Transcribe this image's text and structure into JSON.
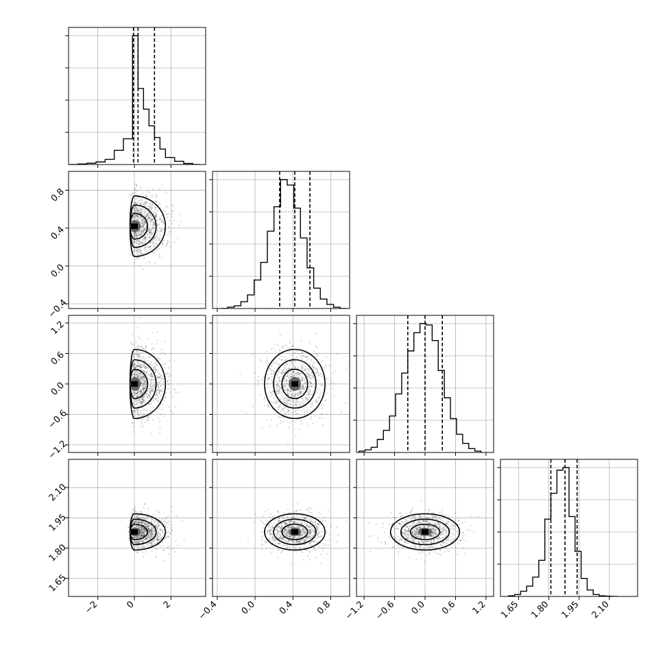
{
  "chart_data": {
    "type": "corner",
    "title": "",
    "grid": true,
    "parameters": [
      {
        "label": "",
        "range": [
          -3.6,
          3.9
        ],
        "ticks": [
          -2,
          0,
          2
        ],
        "tick_labels": [
          "−2",
          "0",
          "2"
        ],
        "quantiles": [
          -0.05,
          0.2,
          1.1
        ],
        "mode": 0.0,
        "hist_bins": [
          -3.6,
          -3.1,
          -2.6,
          -2.1,
          -1.6,
          -1.1,
          -0.6,
          -0.1,
          0.2,
          0.5,
          0.8,
          1.1,
          1.4,
          1.7,
          2.2,
          2.7,
          3.2,
          3.6
        ],
        "hist_values": [
          0,
          0.004,
          0.01,
          0.02,
          0.04,
          0.11,
          0.2,
          1.0,
          0.59,
          0.43,
          0.3,
          0.21,
          0.12,
          0.055,
          0.025,
          0.008,
          0
        ]
      },
      {
        "label": "",
        "range": [
          -0.45,
          1.0
        ],
        "ticks": [
          -0.4,
          0.0,
          0.4,
          0.8
        ],
        "tick_labels": [
          "−0.4",
          "0.0",
          "0.4",
          "0.8"
        ],
        "quantiles": [
          0.26,
          0.42,
          0.58
        ],
        "hist_bins": [
          -0.36,
          -0.29,
          -0.22,
          -0.15,
          -0.08,
          -0.01,
          0.06,
          0.13,
          0.2,
          0.27,
          0.34,
          0.41,
          0.48,
          0.55,
          0.62,
          0.69,
          0.76,
          0.83,
          0.9,
          0.97
        ],
        "hist_values": [
          0,
          0.01,
          0.02,
          0.05,
          0.1,
          0.21,
          0.34,
          0.57,
          0.75,
          0.95,
          0.91,
          0.74,
          0.52,
          0.3,
          0.15,
          0.07,
          0.03,
          0.01,
          0
        ]
      },
      {
        "label": "",
        "range": [
          -1.35,
          1.35
        ],
        "ticks": [
          -1.2,
          -0.6,
          0.0,
          0.6,
          1.2
        ],
        "tick_labels": [
          "−1.2",
          "−0.6",
          "0.0",
          "0.6",
          "1.2"
        ],
        "quantiles": [
          -0.34,
          0.0,
          0.34
        ],
        "hist_bins": [
          -1.3,
          -1.18,
          -1.06,
          -0.94,
          -0.82,
          -0.7,
          -0.58,
          -0.46,
          -0.34,
          -0.22,
          -0.1,
          0.02,
          0.14,
          0.26,
          0.38,
          0.5,
          0.62,
          0.74,
          0.86,
          0.98,
          1.1
        ],
        "hist_values": [
          0.01,
          0.02,
          0.04,
          0.1,
          0.17,
          0.28,
          0.45,
          0.61,
          0.78,
          0.92,
          0.99,
          0.98,
          0.86,
          0.63,
          0.42,
          0.26,
          0.14,
          0.07,
          0.03,
          0.01
        ]
      },
      {
        "label": "",
        "range": [
          1.56,
          2.24
        ],
        "ticks": [
          1.65,
          1.8,
          1.95,
          2.1
        ],
        "tick_labels": [
          "1.65",
          "1.80",
          "1.95",
          "2.10"
        ],
        "quantiles": [
          1.81,
          1.88,
          1.94
        ],
        "hist_bins": [
          1.6,
          1.63,
          1.66,
          1.69,
          1.72,
          1.75,
          1.78,
          1.81,
          1.84,
          1.87,
          1.9,
          1.93,
          1.96,
          1.99,
          2.02,
          2.05,
          2.08,
          2.11,
          2.14
        ],
        "hist_values": [
          0.005,
          0.015,
          0.04,
          0.08,
          0.15,
          0.28,
          0.6,
          0.8,
          0.98,
          1.0,
          0.62,
          0.35,
          0.14,
          0.05,
          0.015,
          0.005,
          0.002,
          0
        ]
      }
    ]
  }
}
